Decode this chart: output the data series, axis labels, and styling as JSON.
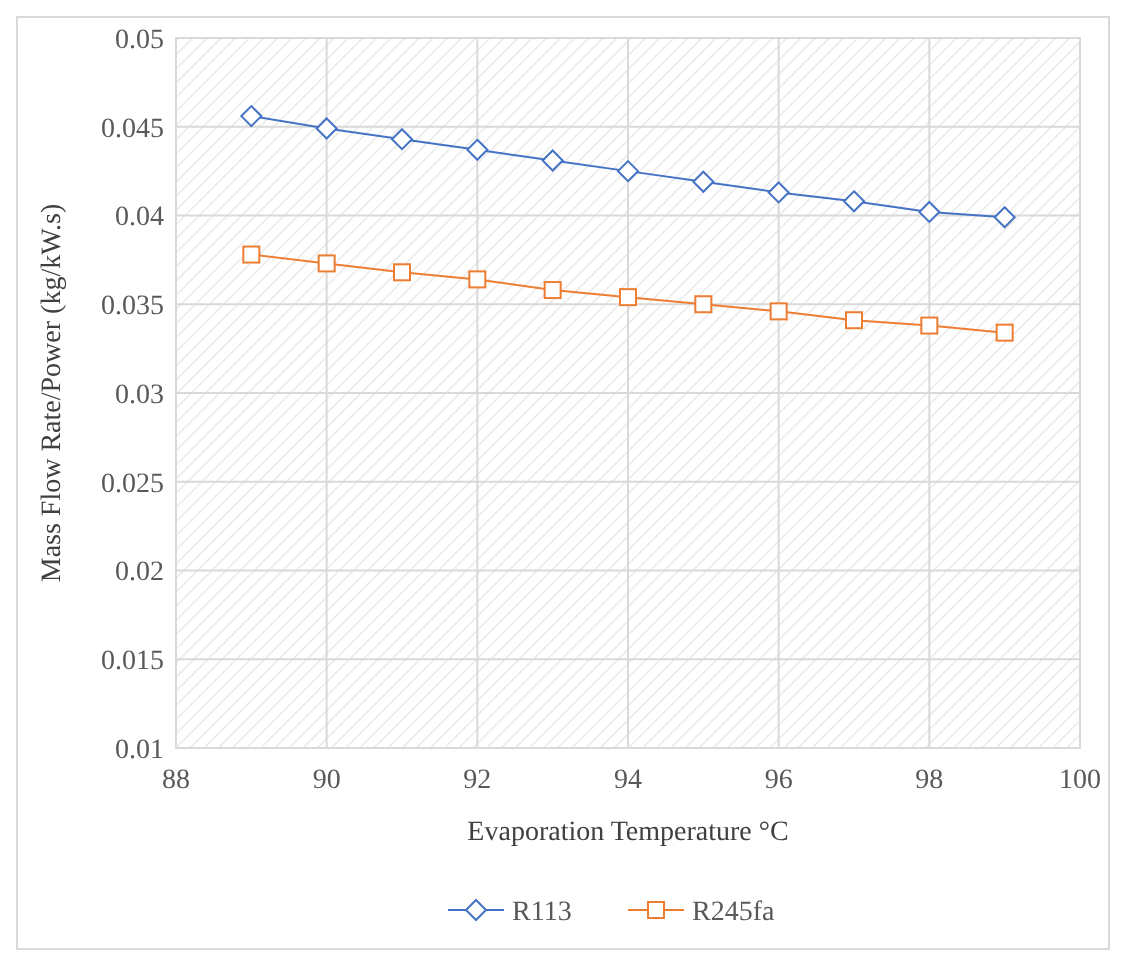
{
  "chart_data": {
    "type": "line",
    "xlabel": "Evaporation Temperature °C",
    "ylabel": "Mass Flow Rate/Power (kg/kW.s)",
    "x": [
      89,
      90,
      91,
      92,
      93,
      94,
      95,
      96,
      97,
      98,
      99
    ],
    "series": [
      {
        "name": "R113",
        "color": "#4472c4",
        "marker": "diamond",
        "values": [
          0.0456,
          0.0449,
          0.0443,
          0.0437,
          0.0431,
          0.0425,
          0.0419,
          0.0413,
          0.0408,
          0.0402,
          0.0399
        ]
      },
      {
        "name": "R245fa",
        "color": "#ed7d31",
        "marker": "square",
        "values": [
          0.0378,
          0.0373,
          0.0368,
          0.0364,
          0.0358,
          0.0354,
          0.035,
          0.0346,
          0.0341,
          0.0338,
          0.0334
        ]
      }
    ],
    "xlim": [
      88,
      100
    ],
    "xticks": [
      88,
      90,
      92,
      94,
      96,
      98,
      100
    ],
    "ylim": [
      0.01,
      0.05
    ],
    "yticks": [
      0.01,
      0.015,
      0.02,
      0.025,
      0.03,
      0.035,
      0.04,
      0.045,
      0.05
    ],
    "grid": true,
    "legend": "bottom",
    "line_style": "solid"
  }
}
